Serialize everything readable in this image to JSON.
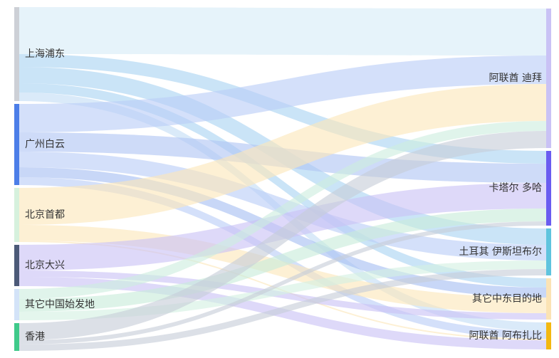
{
  "chart_data": {
    "type": "sankey",
    "sources": [
      {
        "name": "上海浦东",
        "color": "#cdd0d6"
      },
      {
        "name": "广州白云",
        "color": "#4c7ee8"
      },
      {
        "name": "北京首都",
        "color": "#d6f1dd"
      },
      {
        "name": "北京大兴",
        "color": "#4c5a78"
      },
      {
        "name": "其它中国始发地",
        "color": "#d3e3f8"
      },
      {
        "name": "香港",
        "color": "#3fca8a"
      }
    ],
    "targets": [
      {
        "name": "阿联酋 迪拜",
        "color": "#c9c2f5"
      },
      {
        "name": "卡塔尔 多哈",
        "color": "#6a5cf0"
      },
      {
        "name": "土耳其 伊斯坦布尔",
        "color": "#5fc4de"
      },
      {
        "name": "其它中东目的地",
        "color": "#fbe3b4"
      },
      {
        "name": "阿联酋 阿布扎比",
        "color": "#f3b811"
      }
    ],
    "links": [
      {
        "source": "上海浦东",
        "target": "阿联酋 迪拜",
        "value": 66,
        "color": "#d6ebf7"
      },
      {
        "source": "上海浦东",
        "target": "土耳其 伊斯坦布尔",
        "value": 23,
        "color": "#a9d4f2"
      },
      {
        "source": "上海浦东",
        "target": "卡塔尔 多哈",
        "value": 18,
        "color": "#a9d4f2"
      },
      {
        "source": "上海浦东",
        "target": "阿联酋 阿布扎比",
        "value": 12,
        "color": "#c3ddf5"
      },
      {
        "source": "上海浦东",
        "target": "其它中东目的地",
        "value": 13,
        "color": "#a9d4f2"
      },
      {
        "source": "广州白云",
        "target": "阿联酋 迪拜",
        "value": 40,
        "color": "#b9cdf7"
      },
      {
        "source": "广州白云",
        "target": "卡塔尔 多哈",
        "value": 27,
        "color": "#b0c5f4"
      },
      {
        "source": "广州白云",
        "target": "土耳其 伊斯坦布尔",
        "value": 22,
        "color": "#b9cdf7"
      },
      {
        "source": "广州白云",
        "target": "其它中东目的地",
        "value": 14,
        "color": "#a7bef2"
      },
      {
        "source": "广州白云",
        "target": "阿联酋 阿布扎比",
        "value": 11,
        "color": "#b9cdf7"
      },
      {
        "source": "北京首都",
        "target": "阿联酋 迪拜",
        "value": 52,
        "color": "#fbe6b9"
      },
      {
        "source": "北京首都",
        "target": "其它中东目的地",
        "value": 22,
        "color": "#fbe6b9"
      },
      {
        "source": "北京首都",
        "target": "阿联酋 阿布扎比",
        "value": 2,
        "color": "#fbe6b9"
      },
      {
        "source": "北京大兴",
        "target": "卡塔尔 多哈",
        "value": 36,
        "color": "#c9c2f5"
      },
      {
        "source": "北京大兴",
        "target": "阿联酋 阿布扎比",
        "value": 13,
        "color": "#c9c2f5"
      },
      {
        "source": "北京大兴",
        "target": "其它中东目的地",
        "value": 9,
        "color": "#c9c2f5"
      },
      {
        "source": "其它中国始发地",
        "target": "阿联酋 迪拜",
        "value": 14,
        "color": "#cdeedf"
      },
      {
        "source": "其它中国始发地",
        "target": "卡塔尔 多哈",
        "value": 18,
        "color": "#c8ecda"
      },
      {
        "source": "其它中国始发地",
        "target": "土耳其 伊斯坦布尔",
        "value": 12,
        "color": "#d3f0e2"
      },
      {
        "source": "香港",
        "target": "阿联酋 迪拜",
        "value": 24,
        "color": "#c7cdd8"
      },
      {
        "source": "香港",
        "target": "卡塔尔 多哈",
        "value": 6,
        "color": "#c7cdd8"
      },
      {
        "source": "香港",
        "target": "土耳其 伊斯坦布尔",
        "value": 9,
        "color": "#c7cdd8"
      }
    ]
  }
}
